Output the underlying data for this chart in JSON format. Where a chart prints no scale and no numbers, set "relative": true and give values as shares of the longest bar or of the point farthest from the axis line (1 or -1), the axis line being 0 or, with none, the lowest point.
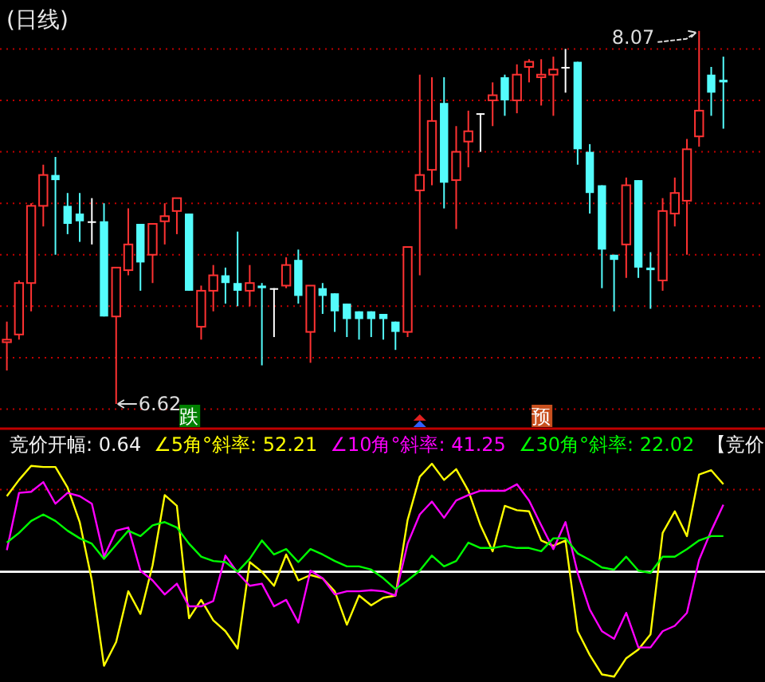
{
  "chart_data": [
    {
      "type": "candlestick",
      "title": "(日线)",
      "categories": [
        null,
        null,
        null,
        null,
        null,
        null,
        null,
        null,
        null,
        null,
        null,
        null,
        null,
        null,
        null,
        null,
        null,
        null,
        null,
        null,
        null,
        null,
        null,
        null,
        null,
        null,
        null,
        null,
        null,
        null,
        null,
        null,
        null,
        null,
        null,
        null,
        null,
        null,
        null,
        null,
        null,
        null,
        null,
        null,
        null,
        null,
        null,
        null,
        null,
        null,
        null,
        null,
        null,
        null,
        null,
        null,
        null,
        null,
        null,
        null
      ],
      "ohlc": [
        [
          6.86,
          6.94,
          6.75,
          6.87
        ],
        [
          6.89,
          7.1,
          6.87,
          7.09
        ],
        [
          7.09,
          7.4,
          6.98,
          7.39
        ],
        [
          7.39,
          7.55,
          7.31,
          7.51
        ],
        [
          7.51,
          7.58,
          7.2,
          7.49
        ],
        [
          7.39,
          7.44,
          7.28,
          7.32
        ],
        [
          7.36,
          7.44,
          7.25,
          7.33
        ],
        [
          7.33,
          7.42,
          7.24,
          7.33
        ],
        [
          7.33,
          7.4,
          6.96,
          6.96
        ],
        [
          6.96,
          7.15,
          6.62,
          7.15
        ],
        [
          7.14,
          7.38,
          7.12,
          7.24
        ],
        [
          7.32,
          7.32,
          7.06,
          7.17
        ],
        [
          7.2,
          7.32,
          7.09,
          7.32
        ],
        [
          7.33,
          7.4,
          7.24,
          7.35
        ],
        [
          7.37,
          7.42,
          7.28,
          7.42
        ],
        [
          7.36,
          7.36,
          7.06,
          7.06
        ],
        [
          6.92,
          7.08,
          6.87,
          7.06
        ],
        [
          7.06,
          7.16,
          6.98,
          7.12
        ],
        [
          7.12,
          7.15,
          7.01,
          7.09
        ],
        [
          7.09,
          7.29,
          7.0,
          7.06
        ],
        [
          7.06,
          7.16,
          7.0,
          7.09
        ],
        [
          7.08,
          7.09,
          6.77,
          7.07
        ],
        [
          7.07,
          7.07,
          6.88,
          7.07
        ],
        [
          7.08,
          7.19,
          7.07,
          7.16
        ],
        [
          7.18,
          7.22,
          7.01,
          7.04
        ],
        [
          6.9,
          7.08,
          6.78,
          7.08
        ],
        [
          7.07,
          7.09,
          6.97,
          7.04
        ],
        [
          7.05,
          7.05,
          6.9,
          6.98
        ],
        [
          7.01,
          7.01,
          6.88,
          6.95
        ],
        [
          6.98,
          6.98,
          6.87,
          6.95
        ],
        [
          6.98,
          6.98,
          6.88,
          6.95
        ],
        [
          6.97,
          6.97,
          6.87,
          6.95
        ],
        [
          6.94,
          6.94,
          6.83,
          6.9
        ],
        [
          6.9,
          7.23,
          6.88,
          7.23
        ],
        [
          7.45,
          7.9,
          7.12,
          7.51
        ],
        [
          7.53,
          7.89,
          7.47,
          7.72
        ],
        [
          7.79,
          7.89,
          7.38,
          7.48
        ],
        [
          7.49,
          7.7,
          7.3,
          7.6
        ],
        [
          7.64,
          7.76,
          7.54,
          7.68
        ],
        [
          7.75,
          7.75,
          7.6,
          7.75
        ],
        [
          7.8,
          7.87,
          7.7,
          7.82
        ],
        [
          7.89,
          7.9,
          7.74,
          7.8
        ],
        [
          7.8,
          7.94,
          7.75,
          7.9
        ],
        [
          7.93,
          7.96,
          7.87,
          7.95
        ],
        [
          7.89,
          7.96,
          7.78,
          7.9
        ],
        [
          7.9,
          7.97,
          7.74,
          7.92
        ],
        [
          7.93,
          8.0,
          7.83,
          7.93
        ],
        [
          7.95,
          7.95,
          7.55,
          7.61
        ],
        [
          7.6,
          7.63,
          7.36,
          7.44
        ],
        [
          7.47,
          7.47,
          7.07,
          7.22
        ],
        [
          7.2,
          7.2,
          6.98,
          7.18
        ],
        [
          7.24,
          7.5,
          7.11,
          7.47
        ],
        [
          7.49,
          7.49,
          7.11,
          7.15
        ],
        [
          7.15,
          7.21,
          6.99,
          7.14
        ],
        [
          7.1,
          7.42,
          7.06,
          7.37
        ],
        [
          7.36,
          7.5,
          7.31,
          7.44
        ],
        [
          7.41,
          7.65,
          7.2,
          7.61
        ],
        [
          7.66,
          8.07,
          7.62,
          7.76
        ],
        [
          7.9,
          7.93,
          7.74,
          7.83
        ],
        [
          7.88,
          7.97,
          7.69,
          7.87
        ]
      ],
      "colors": [
        "#ff3232",
        "#ff3232",
        "#ff3232",
        "#ff3232",
        "#54fcfc",
        "#54fcfc",
        "#54fcfc",
        "#ffffff",
        "#54fcfc",
        "#ff3232",
        "#ff3232",
        "#54fcfc",
        "#ff3232",
        "#ff3232",
        "#ff3232",
        "#54fcfc",
        "#ff3232",
        "#ff3232",
        "#54fcfc",
        "#54fcfc",
        "#ff3232",
        "#54fcfc",
        "#ffffff",
        "#ff3232",
        "#54fcfc",
        "#ff3232",
        "#54fcfc",
        "#54fcfc",
        "#54fcfc",
        "#54fcfc",
        "#54fcfc",
        "#54fcfc",
        "#54fcfc",
        "#ff3232",
        "#ff3232",
        "#ff3232",
        "#54fcfc",
        "#ff3232",
        "#ff3232",
        "#ffffff",
        "#ff3232",
        "#54fcfc",
        "#ff3232",
        "#ff3232",
        "#ff3232",
        "#ff3232",
        "#ffffff",
        "#54fcfc",
        "#54fcfc",
        "#54fcfc",
        "#54fcfc",
        "#ff3232",
        "#54fcfc",
        "#54fcfc",
        "#ff3232",
        "#ff3232",
        "#ff3232",
        "#ff3232",
        "#54fcfc",
        "#54fcfc"
      ],
      "yticks": [
        {
          "value": 6.6,
          "label": null
        },
        {
          "value": 6.8,
          "label": null
        },
        {
          "value": 7.0,
          "label": null
        },
        {
          "value": 7.2,
          "label": null
        },
        {
          "value": 7.4,
          "label": null
        },
        {
          "value": 7.6,
          "label": null
        },
        {
          "value": 7.8,
          "label": null
        },
        {
          "value": 8.0,
          "label": null
        }
      ],
      "grid": "y",
      "annotations": [
        "6.62",
        "8.07",
        "跌",
        "预"
      ]
    },
    {
      "type": "line",
      "relative": true,
      "categories": [
        null,
        null,
        null,
        null,
        null,
        null,
        null,
        null,
        null,
        null,
        null,
        null,
        null,
        null,
        null,
        null,
        null,
        null,
        null,
        null,
        null,
        null,
        null,
        null,
        null,
        null,
        null,
        null,
        null,
        null,
        null,
        null,
        null,
        null,
        null,
        null,
        null,
        null,
        null,
        null,
        null,
        null,
        null,
        null,
        null,
        null,
        null,
        null,
        null,
        null,
        null,
        null,
        null,
        null,
        null,
        null,
        null,
        null,
        null,
        null
      ],
      "series": [
        {
          "name": "∠5角°斜率: 52.21",
          "color": "#ffff00",
          "values": [
            0.7,
            0.85,
            0.98,
            0.97,
            0.97,
            0.78,
            0.46,
            -0.08,
            -0.87,
            -0.65,
            -0.18,
            -0.39,
            0.06,
            0.71,
            0.61,
            -0.43,
            -0.26,
            -0.45,
            -0.55,
            -0.71,
            0.09,
            0.0,
            -0.13,
            0.16,
            -0.08,
            -0.03,
            -0.06,
            -0.18,
            -0.49,
            -0.22,
            -0.31,
            -0.24,
            -0.22,
            0.48,
            0.88,
            1.0,
            0.85,
            0.95,
            0.75,
            0.43,
            0.19,
            0.61,
            0.57,
            0.56,
            0.29,
            0.24,
            0.29,
            -0.55,
            -0.77,
            -0.95,
            -0.97,
            -0.8,
            -0.72,
            -0.58,
            0.36,
            0.56,
            0.33,
            0.9,
            0.94,
            0.81
          ]
        },
        {
          "name": "∠10角°斜率: 41.25",
          "color": "#ff00ff",
          "values": [
            0.2,
            0.73,
            0.74,
            0.83,
            0.63,
            0.73,
            0.7,
            0.63,
            0.14,
            0.38,
            0.41,
            0.01,
            -0.08,
            -0.21,
            -0.11,
            -0.32,
            -0.32,
            -0.27,
            0.15,
            -0.01,
            -0.13,
            -0.11,
            -0.32,
            -0.26,
            -0.47,
            0.01,
            -0.06,
            -0.21,
            -0.18,
            -0.18,
            -0.17,
            -0.18,
            -0.22,
            0.26,
            0.53,
            0.65,
            0.5,
            0.66,
            0.71,
            0.75,
            0.75,
            0.75,
            0.81,
            0.66,
            0.43,
            0.21,
            0.46,
            -0.01,
            -0.35,
            -0.55,
            -0.62,
            -0.38,
            -0.7,
            -0.7,
            -0.55,
            -0.5,
            -0.38,
            0.11,
            0.38,
            0.62
          ]
        },
        {
          "name": "∠30角°斜率: 22.02",
          "color": "#00ff00",
          "values": [
            0.27,
            0.36,
            0.47,
            0.53,
            0.47,
            0.38,
            0.31,
            0.26,
            0.12,
            0.25,
            0.38,
            0.33,
            0.43,
            0.46,
            0.41,
            0.26,
            0.14,
            0.1,
            0.09,
            0.0,
            0.12,
            0.29,
            0.16,
            0.21,
            0.09,
            0.21,
            0.16,
            0.1,
            0.05,
            0.05,
            0.02,
            -0.06,
            -0.16,
            -0.08,
            0.01,
            0.15,
            0.05,
            0.1,
            0.27,
            0.22,
            0.22,
            0.24,
            0.22,
            0.22,
            0.19,
            0.31,
            0.31,
            0.17,
            0.11,
            0.04,
            0.02,
            0.14,
            0.01,
            -0.01,
            0.14,
            0.14,
            0.21,
            0.29,
            0.33,
            0.33
          ]
        }
      ],
      "ref_lines": [
        {
          "axis": "y",
          "value": 0,
          "color": "#ffffff",
          "line_style": "solid"
        },
        {
          "axis": "y",
          "value": 0.76,
          "color": "#c00000",
          "line_style": "dotted"
        }
      ],
      "legend": "top",
      "annotations": [
        "竞价开幅: 0.64",
        "【竞价"
      ]
    }
  ]
}
